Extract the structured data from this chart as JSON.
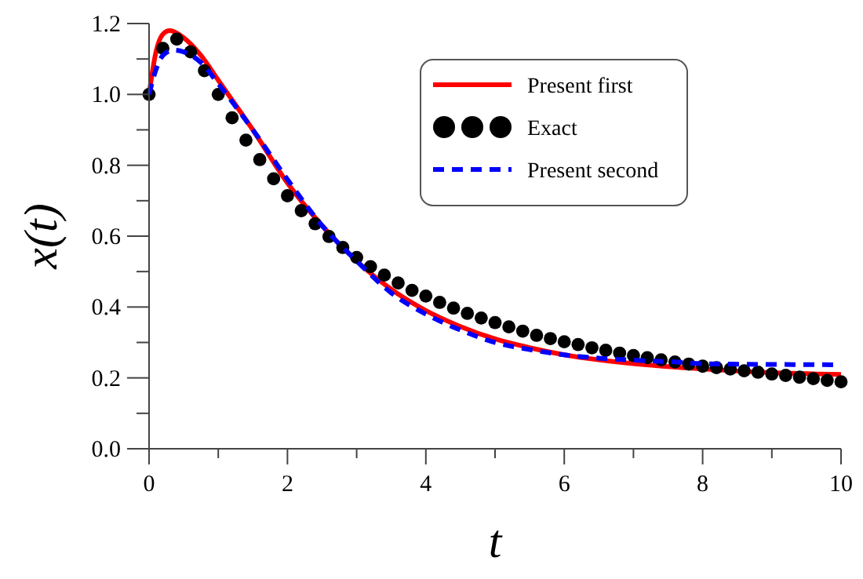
{
  "chart_data": {
    "type": "line",
    "xlabel": "t",
    "ylabel": "x(t)",
    "xlim": [
      0,
      10
    ],
    "ylim": [
      0,
      1.2
    ],
    "xticks": [
      0,
      {
        "value": 1,
        "label": null
      },
      2,
      {
        "value": 3,
        "label": null
      },
      4,
      {
        "value": 5,
        "label": null
      },
      6,
      {
        "value": 7,
        "label": null
      },
      8,
      {
        "value": 9,
        "label": null
      },
      10
    ],
    "yticks": [
      {
        "value": 0,
        "label": "0.0"
      },
      {
        "value": 0.1,
        "label": null
      },
      {
        "value": 0.2,
        "label": "0.2"
      },
      {
        "value": 0.3,
        "label": null
      },
      {
        "value": 0.4,
        "label": "0.4"
      },
      {
        "value": 0.5,
        "label": null
      },
      {
        "value": 0.6,
        "label": "0.6"
      },
      {
        "value": 0.7,
        "label": null
      },
      {
        "value": 0.8,
        "label": "0.8"
      },
      {
        "value": 0.9,
        "label": null
      },
      {
        "value": 1,
        "label": "1.0"
      },
      {
        "value": 1.1,
        "label": null
      },
      {
        "value": 1.2,
        "label": "1.2"
      }
    ],
    "grid": false,
    "legend": "top right",
    "series": [
      {
        "name": "Present first",
        "color": "#ff0000",
        "line_style": "solid",
        "x": [
          0,
          0.1,
          0.2,
          0.3,
          0.5,
          0.75,
          1,
          1.5,
          2,
          2.5,
          3,
          3.5,
          4,
          4.5,
          5,
          5.5,
          6,
          7,
          8,
          9,
          10
        ],
        "values": [
          1.0,
          1.12,
          1.17,
          1.18,
          1.16,
          1.11,
          1.04,
          0.9,
          0.75,
          0.63,
          0.53,
          0.45,
          0.39,
          0.345,
          0.31,
          0.285,
          0.265,
          0.24,
          0.225,
          0.215,
          0.21
        ]
      },
      {
        "name": "Exact",
        "type": "scatter",
        "color": "#000000",
        "marker": "circle",
        "x": [
          0,
          0.2,
          0.4,
          0.6,
          0.8,
          1,
          1.2,
          1.4,
          1.6,
          1.8,
          2,
          2.2,
          2.4,
          2.6,
          2.8,
          3,
          3.2,
          3.4,
          3.6,
          3.8,
          4,
          4.2,
          4.4,
          4.6,
          4.8,
          5,
          5.2,
          5.4,
          5.6,
          5.8,
          6,
          6.2,
          6.4,
          6.6,
          6.8,
          7,
          7.2,
          7.4,
          7.6,
          7.8,
          8,
          8.2,
          8.4,
          8.6,
          8.8,
          9,
          9.2,
          9.4,
          9.6,
          9.8,
          10
        ],
        "values": [
          1.0,
          1.13,
          1.156,
          1.12,
          1.067,
          1.0,
          0.934,
          0.871,
          0.816,
          0.762,
          0.714,
          0.672,
          0.635,
          0.599,
          0.568,
          0.54,
          0.514,
          0.49,
          0.468,
          0.447,
          0.431,
          0.413,
          0.397,
          0.382,
          0.369,
          0.356,
          0.344,
          0.332,
          0.32,
          0.311,
          0.302,
          0.294,
          0.285,
          0.278,
          0.27,
          0.263,
          0.257,
          0.251,
          0.245,
          0.239,
          0.233,
          0.229,
          0.225,
          0.22,
          0.216,
          0.211,
          0.207,
          0.202,
          0.198,
          0.193,
          0.189
        ]
      },
      {
        "name": "Present second",
        "color": "#0000ff",
        "line_style": "dashed",
        "x": [
          0,
          0.1,
          0.2,
          0.35,
          0.5,
          0.75,
          1,
          1.5,
          2,
          2.5,
          3,
          3.5,
          4,
          4.5,
          5,
          5.5,
          6,
          7,
          7.6,
          8,
          9,
          10
        ],
        "values": [
          1.0,
          1.07,
          1.11,
          1.125,
          1.12,
          1.09,
          1.03,
          0.9,
          0.76,
          0.63,
          0.53,
          0.44,
          0.38,
          0.335,
          0.3,
          0.28,
          0.265,
          0.25,
          0.245,
          0.24,
          0.238,
          0.237
        ]
      }
    ]
  }
}
